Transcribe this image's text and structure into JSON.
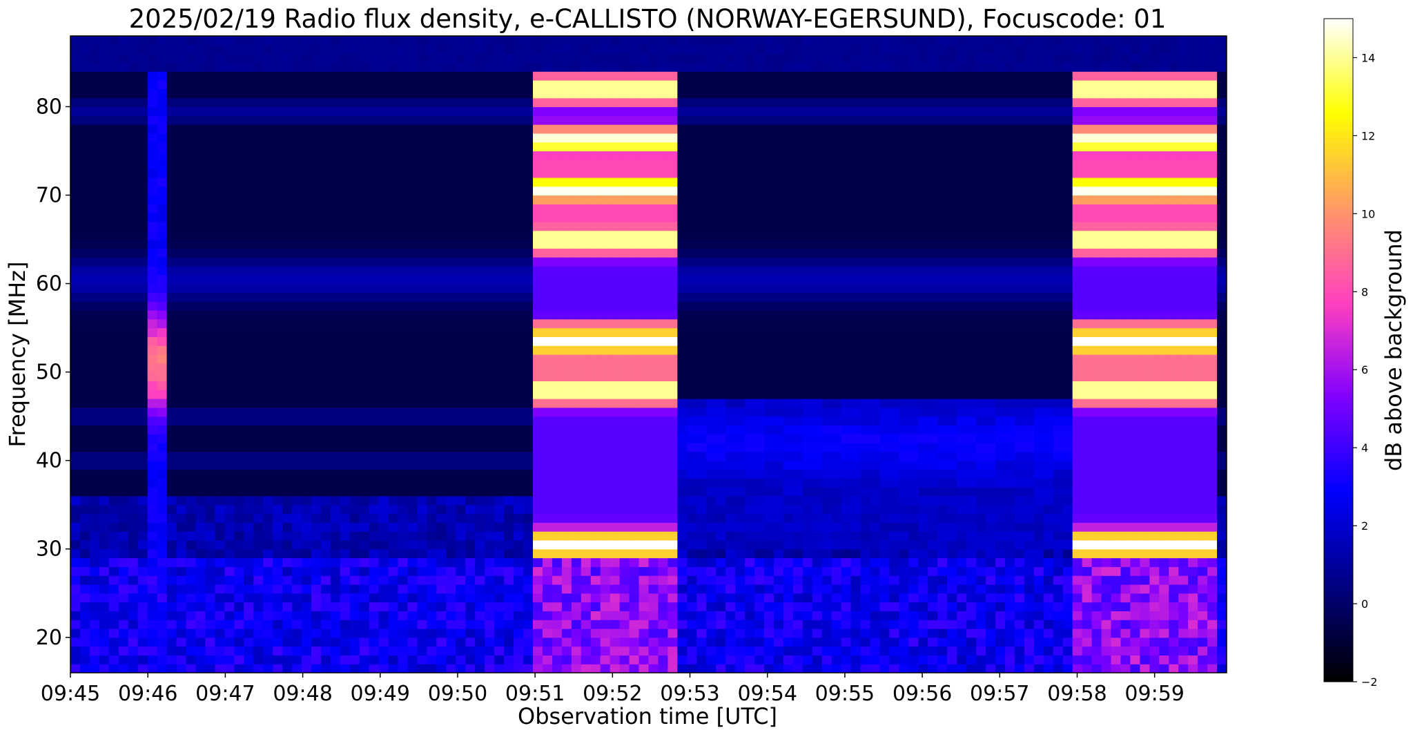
{
  "chart_data": {
    "type": "heatmap",
    "title": "2025/02/19  Radio flux density, e-CALLISTO (NORWAY-EGERSUND), Focuscode: 01",
    "xlabel": "Observation time [UTC]",
    "ylabel": "Frequency [MHz]",
    "x_ticks": [
      "09:45",
      "09:46",
      "09:47",
      "09:48",
      "09:49",
      "09:50",
      "09:51",
      "09:52",
      "09:53",
      "09:54",
      "09:55",
      "09:56",
      "09:57",
      "09:58",
      "09:59"
    ],
    "y_ticks": [
      20,
      30,
      40,
      50,
      60,
      70,
      80
    ],
    "xlim_minutes_after_0945": [
      0,
      14.93
    ],
    "ylim_mhz": [
      16,
      88
    ],
    "colorbar": {
      "label": "dB above background",
      "range": [
        -2,
        15
      ],
      "ticks": [
        -2,
        0,
        2,
        4,
        6,
        8,
        10,
        12,
        14
      ],
      "colormap": "gnuplot2",
      "stops": [
        "#000000",
        "#000080",
        "#0000ff",
        "#8000ff",
        "#ff40c0",
        "#ff9966",
        "#ffff00",
        "#ffffff"
      ]
    },
    "events": [
      {
        "start": "09:46:00",
        "end": "09:46:12",
        "freq_mhz": [
          16,
          84
        ],
        "peak_db": 9
      },
      {
        "start": "09:51:00",
        "end": "09:52:50",
        "freq_mhz": [
          16,
          84
        ],
        "peak_db": 15
      },
      {
        "start": "09:58:00",
        "end": "09:59:50",
        "freq_mhz": [
          16,
          84
        ],
        "peak_db": 15
      }
    ]
  }
}
